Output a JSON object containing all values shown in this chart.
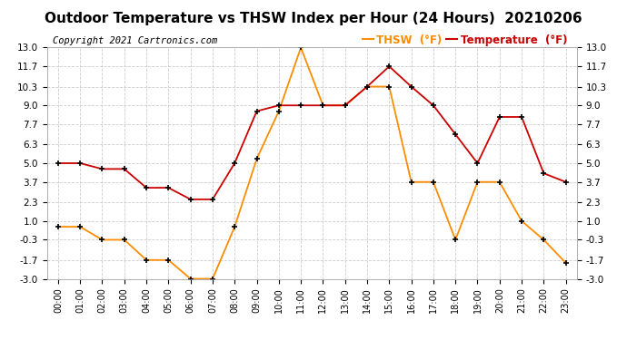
{
  "title": "Outdoor Temperature vs THSW Index per Hour (24 Hours)  20210206",
  "copyright": "Copyright 2021 Cartronics.com",
  "hours": [
    "00:00",
    "01:00",
    "02:00",
    "03:00",
    "04:00",
    "05:00",
    "06:00",
    "07:00",
    "08:00",
    "09:00",
    "10:00",
    "11:00",
    "12:00",
    "13:00",
    "14:00",
    "15:00",
    "16:00",
    "17:00",
    "18:00",
    "19:00",
    "20:00",
    "21:00",
    "22:00",
    "23:00"
  ],
  "temperature": [
    5.0,
    5.0,
    4.6,
    4.6,
    3.3,
    3.3,
    2.5,
    2.5,
    5.0,
    8.6,
    9.0,
    9.0,
    9.0,
    9.0,
    10.3,
    11.7,
    10.3,
    9.0,
    7.0,
    5.0,
    8.2,
    8.2,
    4.3,
    3.7
  ],
  "thsw": [
    0.6,
    0.6,
    -0.3,
    -0.3,
    -1.7,
    -1.7,
    -3.0,
    -3.0,
    0.6,
    5.3,
    8.6,
    13.0,
    9.0,
    9.0,
    10.3,
    10.3,
    3.7,
    3.7,
    -0.3,
    3.7,
    3.7,
    1.0,
    -0.3,
    -1.9
  ],
  "temp_color": "#cc0000",
  "thsw_color": "#ff8c00",
  "marker": "+",
  "marker_size": 5,
  "marker_color": "#000000",
  "marker_linewidth": 1.2,
  "line_width": 1.3,
  "ylim_min": -3.0,
  "ylim_max": 13.0,
  "yticks": [
    -3.0,
    -1.7,
    -0.3,
    1.0,
    2.3,
    3.7,
    5.0,
    6.3,
    7.7,
    9.0,
    10.3,
    11.7,
    13.0
  ],
  "grid_color": "#cccccc",
  "background_color": "#ffffff",
  "legend_thsw": "THSW  (°F)",
  "legend_temp": "Temperature  (°F)",
  "title_fontsize": 11,
  "copyright_fontsize": 7.5,
  "legend_fontsize": 8.5,
  "tick_fontsize": 7,
  "ytick_fontsize": 7.5
}
